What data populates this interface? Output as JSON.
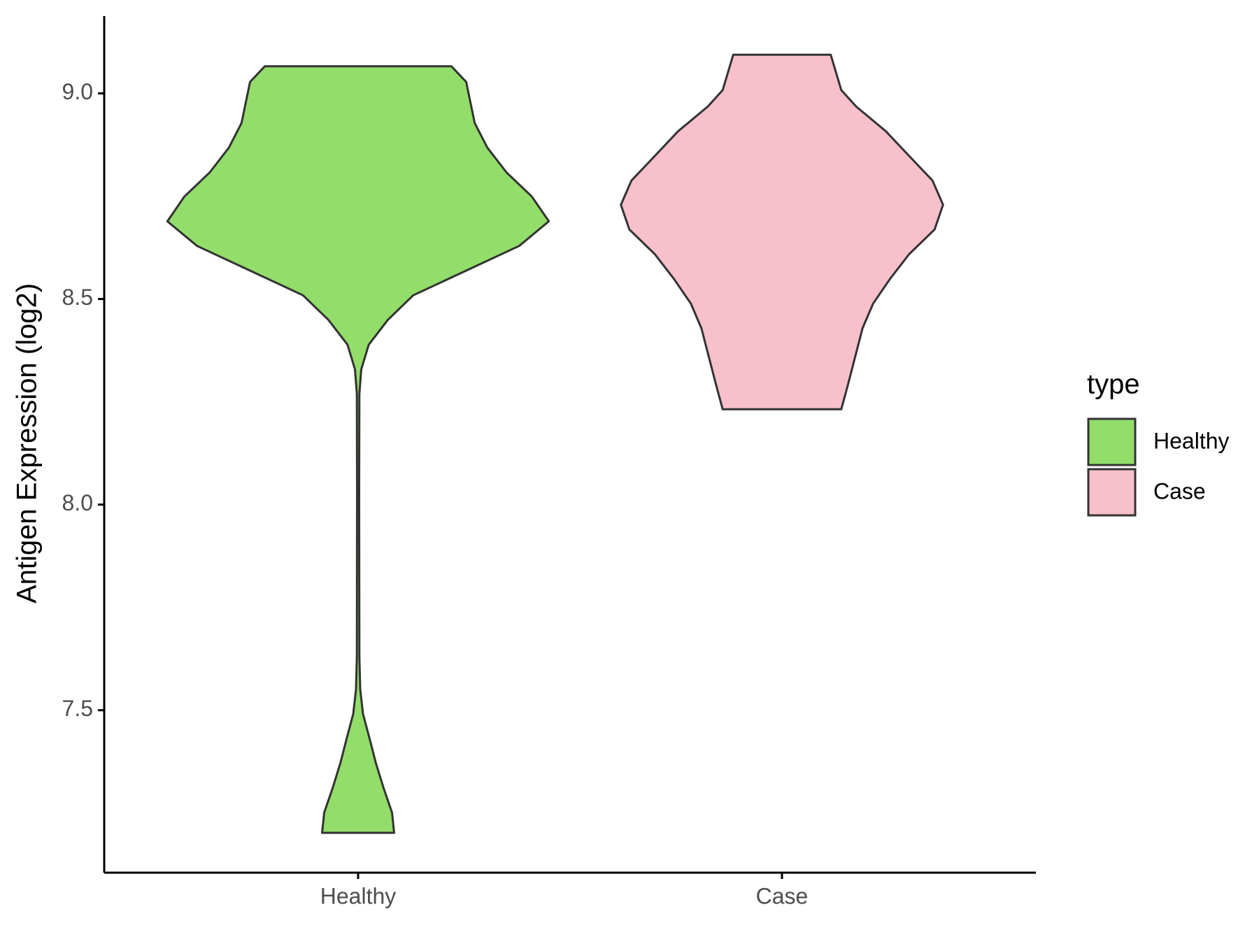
{
  "chart_data": {
    "type": "violin",
    "ylabel": "Antigen Expression (log2)",
    "categories": [
      "Healthy",
      "Case"
    ],
    "legend_title": "type",
    "legend_position": "right",
    "ylim": [
      7.105,
      9.188
    ],
    "yticks": [
      7.5,
      {
        "value": 8.0,
        "label": "8.0"
      },
      8.5,
      {
        "value": 9.0,
        "label": "9.0"
      }
    ],
    "series": [
      {
        "name": "Healthy",
        "color": "#93dd6a",
        "y": [
          9.066,
          9.028,
          8.928,
          8.868,
          8.808,
          8.749,
          8.689,
          8.629,
          8.569,
          8.509,
          8.449,
          8.389,
          8.329,
          8.269,
          8.03,
          7.631,
          7.551,
          7.491,
          7.431,
          7.371,
          7.311,
          7.251,
          7.202
        ],
        "widths": [
          0.44,
          0.51,
          0.55,
          0.61,
          0.7,
          0.82,
          0.9,
          0.76,
          0.51,
          0.26,
          0.14,
          0.05,
          0.015,
          0.006,
          0.005,
          0.006,
          0.01,
          0.023,
          0.054,
          0.084,
          0.12,
          0.16,
          0.17
        ]
      },
      {
        "name": "Case",
        "color": "#f7c0cb",
        "y": [
          9.094,
          9.008,
          8.968,
          8.908,
          8.848,
          8.788,
          8.729,
          8.669,
          8.609,
          8.549,
          8.489,
          8.429,
          8.369,
          8.289,
          8.232
        ],
        "widths": [
          0.23,
          0.28,
          0.35,
          0.49,
          0.6,
          0.71,
          0.76,
          0.72,
          0.6,
          0.51,
          0.43,
          0.38,
          0.35,
          0.31,
          0.28
        ]
      }
    ]
  }
}
